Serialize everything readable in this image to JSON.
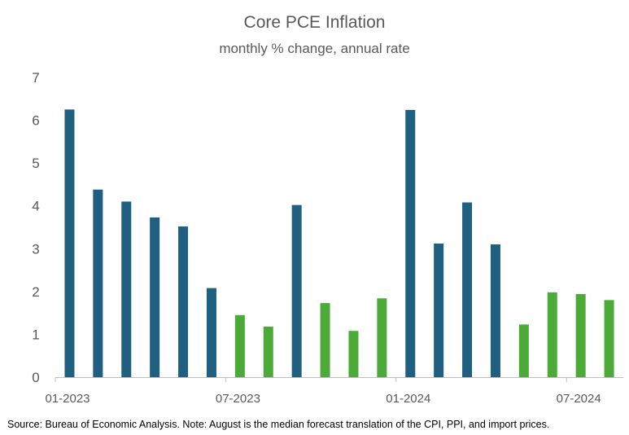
{
  "chart_data": {
    "type": "bar",
    "title": "Core PCE Inflation",
    "subtitle": "monthly % change, annual rate",
    "xlabel": "",
    "ylabel": "",
    "ylim": [
      0,
      7
    ],
    "yticks": [
      0,
      1,
      2,
      3,
      4,
      5,
      6,
      7
    ],
    "grid": false,
    "categories": [
      "01-2023",
      "02-2023",
      "03-2023",
      "04-2023",
      "05-2023",
      "06-2023",
      "07-2023",
      "08-2023",
      "09-2023",
      "10-2023",
      "11-2023",
      "12-2023",
      "01-2024",
      "02-2024",
      "03-2024",
      "04-2024",
      "05-2024",
      "06-2024",
      "07-2024",
      "08-2024"
    ],
    "values": [
      6.25,
      4.38,
      4.1,
      3.73,
      3.52,
      2.08,
      1.45,
      1.18,
      4.02,
      1.73,
      1.08,
      1.84,
      6.24,
      3.12,
      4.08,
      3.1,
      1.23,
      1.98,
      1.94,
      1.8
    ],
    "colors": [
      "#1f5f80",
      "#1f5f80",
      "#1f5f80",
      "#1f5f80",
      "#1f5f80",
      "#1f5f80",
      "#4caa38",
      "#4caa38",
      "#1f5f80",
      "#4caa38",
      "#4caa38",
      "#4caa38",
      "#1f5f80",
      "#1f5f80",
      "#1f5f80",
      "#1f5f80",
      "#4caa38",
      "#4caa38",
      "#4caa38",
      "#4caa38"
    ],
    "x_tick_labels": [
      {
        "index": 0,
        "label": "01-2023"
      },
      {
        "index": 6,
        "label": "07-2023"
      },
      {
        "index": 12,
        "label": "01-2024"
      },
      {
        "index": 18,
        "label": "07-2024"
      }
    ],
    "source": "Source: Bureau of Economic Analysis. Note: August is the median forecast translation of the CPI, PPI, and import prices."
  }
}
